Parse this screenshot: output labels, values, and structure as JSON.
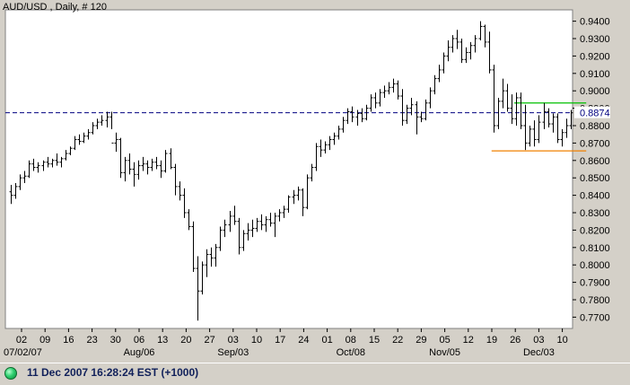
{
  "chart_data": {
    "type": "ohlc",
    "title": "AUD/USD , Daily, # 120",
    "y_ticks": [
      "0.9400",
      "0.9300",
      "0.9200",
      "0.9100",
      "0.9000",
      "0.8900",
      "0.8800",
      "0.8700",
      "0.8600",
      "0.8500",
      "0.8400",
      "0.8300",
      "0.8200",
      "0.8100",
      "0.8000",
      "0.7900",
      "0.7800",
      "0.7700"
    ],
    "y_tick_values": [
      0.94,
      0.93,
      0.92,
      0.91,
      0.9,
      0.89,
      0.88,
      0.87,
      0.86,
      0.85,
      0.84,
      0.83,
      0.82,
      0.81,
      0.8,
      0.79,
      0.78,
      0.77
    ],
    "ylim": [
      0.7635,
      0.9465
    ],
    "x_day_labels": [
      "02",
      "09",
      "16",
      "23",
      "30",
      "06",
      "13",
      "20",
      "27",
      "03",
      "10",
      "17",
      "24",
      "01",
      "08",
      "15",
      "22",
      "29",
      "05",
      "12",
      "19",
      "26",
      "03",
      "10"
    ],
    "x_month_labels": [
      {
        "label": "07/02/07",
        "index": 0
      },
      {
        "label": "Aug/06",
        "index": 5
      },
      {
        "label": "Sep/03",
        "index": 9
      },
      {
        "label": "Oct/08",
        "index": 14
      },
      {
        "label": "Nov/05",
        "index": 18
      },
      {
        "label": "Dec/03",
        "index": 22
      }
    ],
    "last_price_label": "0.8874",
    "last_price_value": 0.8874,
    "reference_lines": [
      {
        "kind": "dashed-horizontal",
        "value": 0.8874,
        "color": "#000080"
      },
      {
        "kind": "resistance",
        "value": 0.893,
        "from_bar": 111,
        "to_bar": 126,
        "color": "#00c000"
      },
      {
        "kind": "support",
        "value": 0.8655,
        "from_bar": 106,
        "to_bar": 126,
        "color": "#f08000"
      }
    ],
    "bars": [
      [
        0.842,
        0.846,
        0.835,
        0.84
      ],
      [
        0.84,
        0.847,
        0.838,
        0.845
      ],
      [
        0.845,
        0.852,
        0.843,
        0.85
      ],
      [
        0.85,
        0.854,
        0.847,
        0.851
      ],
      [
        0.851,
        0.86,
        0.85,
        0.858
      ],
      [
        0.858,
        0.861,
        0.854,
        0.856
      ],
      [
        0.856,
        0.859,
        0.853,
        0.857
      ],
      [
        0.857,
        0.86,
        0.854,
        0.859
      ],
      [
        0.859,
        0.862,
        0.856,
        0.858
      ],
      [
        0.858,
        0.861,
        0.856,
        0.86
      ],
      [
        0.86,
        0.864,
        0.857,
        0.859
      ],
      [
        0.859,
        0.862,
        0.856,
        0.861
      ],
      [
        0.861,
        0.866,
        0.86,
        0.864
      ],
      [
        0.864,
        0.868,
        0.863,
        0.867
      ],
      [
        0.867,
        0.874,
        0.866,
        0.872
      ],
      [
        0.872,
        0.875,
        0.869,
        0.871
      ],
      [
        0.871,
        0.876,
        0.87,
        0.874
      ],
      [
        0.874,
        0.878,
        0.872,
        0.876
      ],
      [
        0.876,
        0.882,
        0.875,
        0.88
      ],
      [
        0.88,
        0.884,
        0.878,
        0.882
      ],
      [
        0.882,
        0.886,
        0.88,
        0.883
      ],
      [
        0.883,
        0.888,
        0.879,
        0.885
      ],
      [
        0.885,
        0.888,
        0.878,
        0.87
      ],
      [
        0.87,
        0.876,
        0.865,
        0.872
      ],
      [
        0.872,
        0.873,
        0.85,
        0.853
      ],
      [
        0.853,
        0.862,
        0.848,
        0.86
      ],
      [
        0.86,
        0.864,
        0.852,
        0.855
      ],
      [
        0.855,
        0.859,
        0.845,
        0.852
      ],
      [
        0.852,
        0.86,
        0.849,
        0.857
      ],
      [
        0.857,
        0.862,
        0.854,
        0.858
      ],
      [
        0.858,
        0.86,
        0.852,
        0.856
      ],
      [
        0.856,
        0.861,
        0.854,
        0.859
      ],
      [
        0.859,
        0.862,
        0.855,
        0.857
      ],
      [
        0.857,
        0.86,
        0.85,
        0.854
      ],
      [
        0.854,
        0.866,
        0.853,
        0.864
      ],
      [
        0.864,
        0.867,
        0.855,
        0.856
      ],
      [
        0.856,
        0.858,
        0.84,
        0.845
      ],
      [
        0.845,
        0.848,
        0.837,
        0.84
      ],
      [
        0.84,
        0.844,
        0.827,
        0.83
      ],
      [
        0.83,
        0.832,
        0.82,
        0.822
      ],
      [
        0.822,
        0.825,
        0.796,
        0.798
      ],
      [
        0.798,
        0.805,
        0.768,
        0.785
      ],
      [
        0.785,
        0.802,
        0.783,
        0.8
      ],
      [
        0.8,
        0.809,
        0.793,
        0.806
      ],
      [
        0.806,
        0.81,
        0.799,
        0.804
      ],
      [
        0.804,
        0.812,
        0.799,
        0.81
      ],
      [
        0.81,
        0.822,
        0.808,
        0.82
      ],
      [
        0.82,
        0.826,
        0.816,
        0.823
      ],
      [
        0.823,
        0.831,
        0.819,
        0.828
      ],
      [
        0.828,
        0.834,
        0.823,
        0.825
      ],
      [
        0.825,
        0.827,
        0.806,
        0.81
      ],
      [
        0.81,
        0.82,
        0.808,
        0.818
      ],
      [
        0.818,
        0.824,
        0.814,
        0.82
      ],
      [
        0.82,
        0.826,
        0.816,
        0.821
      ],
      [
        0.821,
        0.827,
        0.819,
        0.825
      ],
      [
        0.825,
        0.829,
        0.82,
        0.823
      ],
      [
        0.823,
        0.828,
        0.819,
        0.826
      ],
      [
        0.826,
        0.83,
        0.822,
        0.824
      ],
      [
        0.824,
        0.83,
        0.816,
        0.828
      ],
      [
        0.828,
        0.832,
        0.825,
        0.83
      ],
      [
        0.83,
        0.834,
        0.827,
        0.832
      ],
      [
        0.832,
        0.84,
        0.83,
        0.839
      ],
      [
        0.839,
        0.843,
        0.835,
        0.84
      ],
      [
        0.84,
        0.845,
        0.837,
        0.843
      ],
      [
        0.843,
        0.844,
        0.828,
        0.833
      ],
      [
        0.833,
        0.852,
        0.832,
        0.85
      ],
      [
        0.85,
        0.858,
        0.848,
        0.856
      ],
      [
        0.856,
        0.87,
        0.854,
        0.868
      ],
      [
        0.868,
        0.872,
        0.862,
        0.866
      ],
      [
        0.866,
        0.871,
        0.864,
        0.869
      ],
      [
        0.869,
        0.874,
        0.866,
        0.872
      ],
      [
        0.872,
        0.876,
        0.869,
        0.874
      ],
      [
        0.874,
        0.88,
        0.872,
        0.878
      ],
      [
        0.878,
        0.885,
        0.876,
        0.883
      ],
      [
        0.883,
        0.89,
        0.881,
        0.888
      ],
      [
        0.888,
        0.891,
        0.882,
        0.885
      ],
      [
        0.885,
        0.889,
        0.88,
        0.887
      ],
      [
        0.887,
        0.89,
        0.882,
        0.884
      ],
      [
        0.884,
        0.892,
        0.883,
        0.89
      ],
      [
        0.89,
        0.898,
        0.888,
        0.896
      ],
      [
        0.896,
        0.899,
        0.89,
        0.893
      ],
      [
        0.893,
        0.901,
        0.891,
        0.899
      ],
      [
        0.899,
        0.903,
        0.896,
        0.9
      ],
      [
        0.9,
        0.905,
        0.898,
        0.902
      ],
      [
        0.902,
        0.907,
        0.899,
        0.904
      ],
      [
        0.904,
        0.906,
        0.895,
        0.897
      ],
      [
        0.897,
        0.901,
        0.88,
        0.883
      ],
      [
        0.883,
        0.892,
        0.881,
        0.89
      ],
      [
        0.89,
        0.896,
        0.886,
        0.892
      ],
      [
        0.892,
        0.894,
        0.875,
        0.885
      ],
      [
        0.885,
        0.888,
        0.882,
        0.884
      ],
      [
        0.884,
        0.895,
        0.883,
        0.893
      ],
      [
        0.893,
        0.902,
        0.89,
        0.9
      ],
      [
        0.9,
        0.909,
        0.898,
        0.907
      ],
      [
        0.907,
        0.915,
        0.905,
        0.912
      ],
      [
        0.912,
        0.922,
        0.91,
        0.92
      ],
      [
        0.92,
        0.929,
        0.917,
        0.925
      ],
      [
        0.925,
        0.932,
        0.922,
        0.93
      ],
      [
        0.93,
        0.935,
        0.924,
        0.928
      ],
      [
        0.928,
        0.93,
        0.916,
        0.918
      ],
      [
        0.918,
        0.925,
        0.916,
        0.922
      ],
      [
        0.922,
        0.928,
        0.918,
        0.926
      ],
      [
        0.926,
        0.932,
        0.922,
        0.93
      ],
      [
        0.93,
        0.94,
        0.929,
        0.937
      ],
      [
        0.937,
        0.938,
        0.925,
        0.928
      ],
      [
        0.928,
        0.934,
        0.91,
        0.912
      ],
      [
        0.912,
        0.915,
        0.876,
        0.88
      ],
      [
        0.88,
        0.896,
        0.878,
        0.894
      ],
      [
        0.894,
        0.907,
        0.89,
        0.9
      ],
      [
        0.9,
        0.904,
        0.888,
        0.89
      ],
      [
        0.89,
        0.898,
        0.881,
        0.884
      ],
      [
        0.884,
        0.899,
        0.88,
        0.896
      ],
      [
        0.896,
        0.899,
        0.878,
        0.88
      ],
      [
        0.88,
        0.892,
        0.866,
        0.87
      ],
      [
        0.87,
        0.88,
        0.868,
        0.878
      ],
      [
        0.878,
        0.883,
        0.868,
        0.872
      ],
      [
        0.872,
        0.886,
        0.87,
        0.882
      ],
      [
        0.882,
        0.893,
        0.878,
        0.888
      ],
      [
        0.888,
        0.89,
        0.879,
        0.881
      ],
      [
        0.881,
        0.887,
        0.876,
        0.885
      ],
      [
        0.885,
        0.887,
        0.87,
        0.872
      ],
      [
        0.872,
        0.878,
        0.868,
        0.876
      ],
      [
        0.876,
        0.884,
        0.873,
        0.88
      ],
      [
        0.88,
        0.889,
        0.878,
        0.8874
      ]
    ]
  },
  "status": {
    "text": "11 Dec 2007 16:28:24  EST (+1000)",
    "indicator_color": "#2fd070"
  },
  "colors": {
    "plot_background": "#ffffff",
    "frame": "#808080",
    "bars": "#000000",
    "dashed_line": "#000080",
    "resistance_line": "#00c000",
    "support_line": "#f08000"
  }
}
